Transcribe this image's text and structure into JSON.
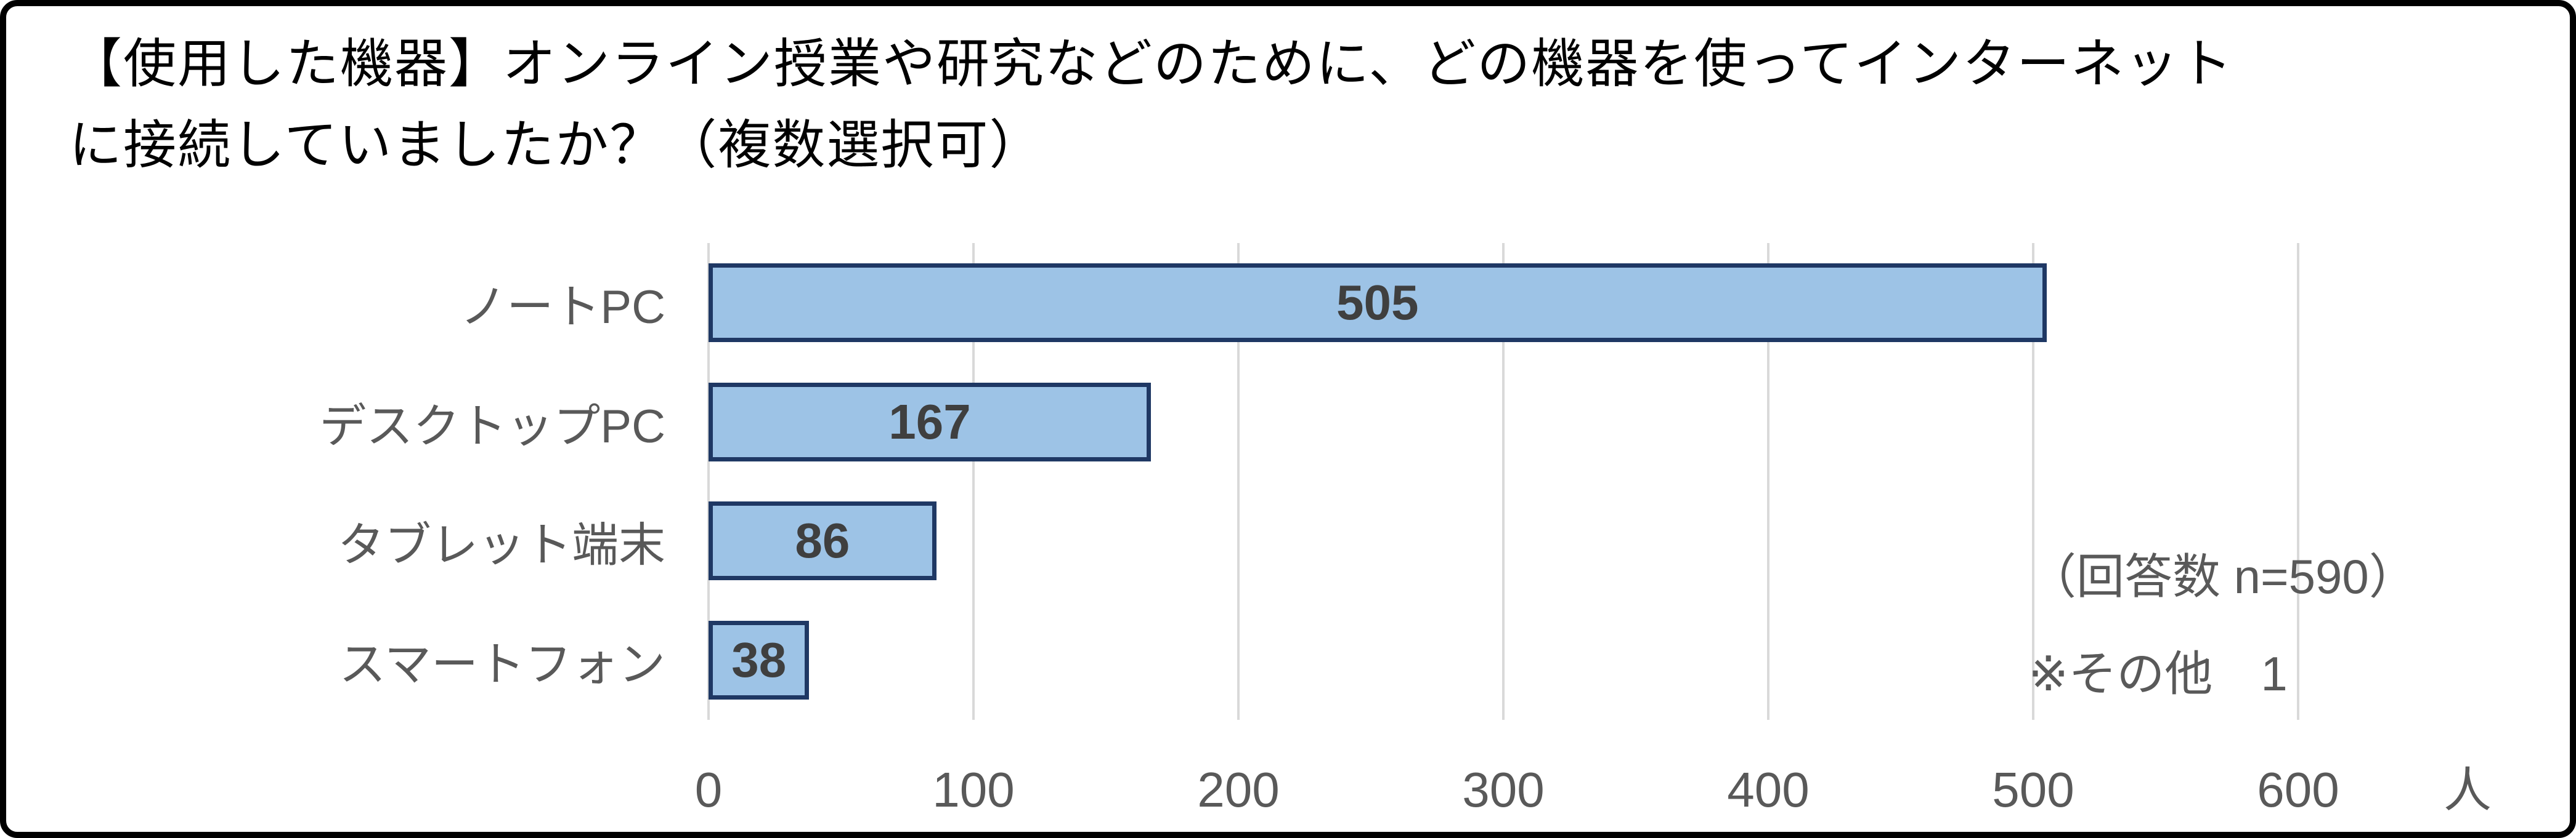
{
  "header": {
    "title_lines": [
      "【使用した機器】オンライン授業や研究などのために、どの機器を使ってインターネット",
      "に接続していましたか？（複数選択可）"
    ]
  },
  "chart_data": {
    "type": "bar",
    "orientation": "horizontal",
    "title": "【使用した機器】オンライン授業や研究などのために、どの機器を使ってインターネットに接続していましたか？（複数選択可）",
    "categories": [
      "ノートPC",
      "デスクトップPC",
      "タブレット端末",
      "スマートフォン"
    ],
    "values": [
      505,
      167,
      86,
      38
    ],
    "value_labels": [
      "505",
      "167",
      "86",
      "38"
    ],
    "x_ticks": [
      0,
      100,
      200,
      300,
      400,
      500,
      600
    ],
    "xlim": [
      0,
      600
    ],
    "xlabel": "人",
    "grid": true,
    "legend": "none",
    "annotations": {
      "n_count": "（回答数 n=590）",
      "other": "※その他　1"
    },
    "colors": {
      "bar_fill": "#9DC3E6",
      "bar_border": "#1F3864",
      "gridline": "#D9D9D9",
      "axis_text": "#595959",
      "value_text": "#3F3F3F",
      "title_text": "#000000",
      "background": "#FFFFFF",
      "frame_border": "#000000"
    }
  }
}
